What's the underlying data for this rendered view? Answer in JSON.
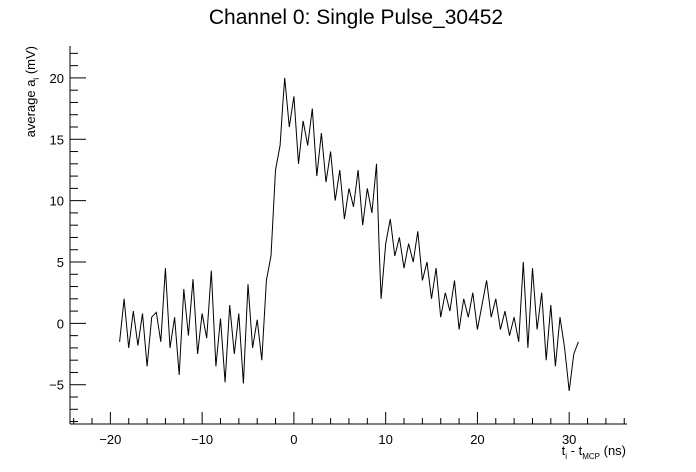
{
  "chart_data": {
    "type": "line",
    "title": "Channel 0: Single Pulse_30452",
    "xlabel": {
      "prefix": "t",
      "sub1": "i",
      "mid": " - t",
      "sub2": "MCP",
      "suffix": " (ns)"
    },
    "ylabel": {
      "prefix": "average a",
      "sub": "i",
      "suffix": " (mV)"
    },
    "xlim": [
      -24.4,
      36.3
    ],
    "ylim": [
      -8.2,
      22.6
    ],
    "x_ticks": [
      -20,
      -10,
      0,
      10,
      20,
      30
    ],
    "x_tick_labels": [
      "−20",
      "−10",
      "0",
      "10",
      "20",
      "30"
    ],
    "y_ticks": [
      -5,
      0,
      5,
      10,
      15,
      20
    ],
    "y_tick_labels": [
      "−5",
      "0",
      "5",
      "10",
      "15",
      "20"
    ],
    "grid": false,
    "legend": "none",
    "series": [
      {
        "color": "#000000",
        "x": [
          -19.0,
          -18.5,
          -18.0,
          -17.5,
          -17.0,
          -16.5,
          -16.0,
          -15.5,
          -15.0,
          -14.5,
          -14.0,
          -13.5,
          -13.0,
          -12.5,
          -12.0,
          -11.5,
          -11.0,
          -10.5,
          -10.0,
          -9.5,
          -9.0,
          -8.5,
          -8.0,
          -7.5,
          -7.0,
          -6.5,
          -6.0,
          -5.5,
          -5.0,
          -4.5,
          -4.0,
          -3.5,
          -3.0,
          -2.5,
          -2.0,
          -1.5,
          -1.2,
          -1.0,
          -0.5,
          0.0,
          0.5,
          1.0,
          1.5,
          2.0,
          2.5,
          3.0,
          3.5,
          4.0,
          4.5,
          5.0,
          5.5,
          6.0,
          6.5,
          7.0,
          7.5,
          8.0,
          8.5,
          9.0,
          9.3,
          9.5,
          10.0,
          10.5,
          11.0,
          11.5,
          12.0,
          12.5,
          13.0,
          13.5,
          14.0,
          14.5,
          15.0,
          15.5,
          16.0,
          16.5,
          17.0,
          17.5,
          18.0,
          18.5,
          19.0,
          19.5,
          20.0,
          20.5,
          21.0,
          21.5,
          22.0,
          22.5,
          23.0,
          23.5,
          24.0,
          24.5,
          25.0,
          25.5,
          26.0,
          26.5,
          27.0,
          27.5,
          28.0,
          28.5,
          29.0,
          29.5,
          30.0,
          30.5,
          31.0
        ],
        "y": [
          -1.5,
          2.0,
          -2.0,
          1.0,
          -1.8,
          0.8,
          -3.5,
          0.5,
          0.9,
          -1.5,
          4.5,
          -2.0,
          0.5,
          -4.2,
          2.8,
          -1.0,
          3.6,
          -2.5,
          0.8,
          -1.2,
          4.3,
          -3.5,
          0.4,
          -4.8,
          1.5,
          -2.5,
          0.8,
          -4.9,
          3.2,
          -2.0,
          0.3,
          -3.0,
          3.5,
          5.5,
          12.5,
          14.5,
          18.0,
          20.0,
          16.0,
          18.5,
          13.0,
          16.5,
          14.5,
          17.5,
          12.0,
          15.5,
          11.5,
          14.0,
          10.0,
          12.5,
          8.5,
          11.0,
          9.5,
          12.5,
          8.0,
          11.0,
          9.0,
          13.0,
          6.0,
          2.0,
          6.5,
          8.5,
          5.5,
          7.0,
          4.5,
          6.5,
          5.0,
          7.5,
          3.5,
          5.0,
          2.0,
          4.5,
          0.5,
          2.5,
          1.0,
          3.5,
          -0.5,
          2.0,
          0.5,
          2.5,
          -0.5,
          1.5,
          3.5,
          0.5,
          2.0,
          -0.5,
          1.0,
          -1.0,
          0.5,
          -1.5,
          5.0,
          -2.0,
          4.5,
          -0.5,
          2.5,
          -3.0,
          1.5,
          -3.5,
          0.5,
          -2.0,
          -5.5,
          -2.5,
          -1.5
        ]
      }
    ]
  }
}
